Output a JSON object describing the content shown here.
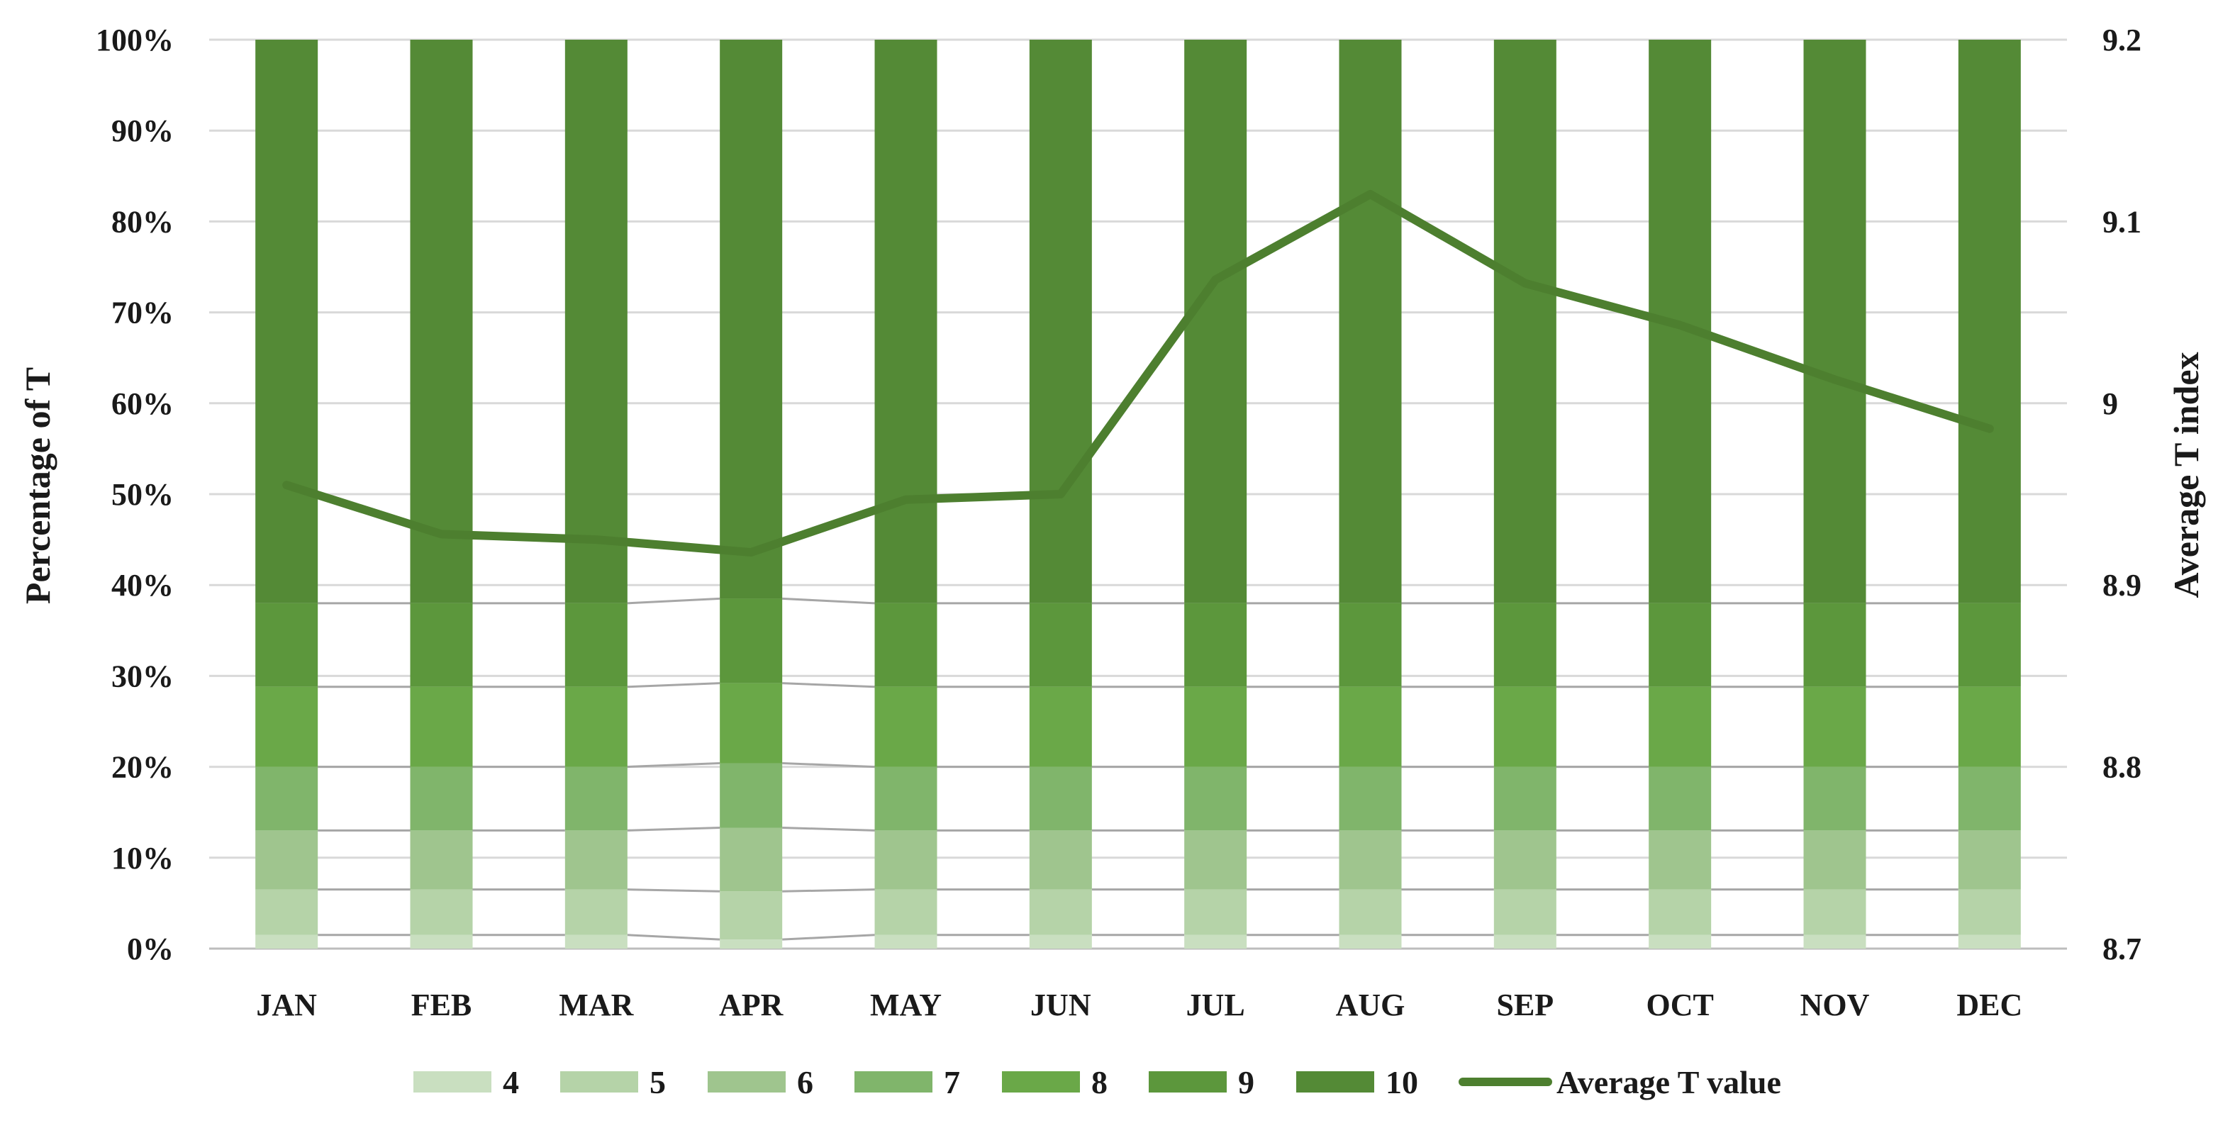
{
  "chart_data": {
    "type": "bar",
    "stacked": true,
    "percent_stacked": true,
    "categories": [
      "JAN",
      "FEB",
      "MAR",
      "APR",
      "MAY",
      "JUN",
      "JUL",
      "AUG",
      "SEP",
      "OCT",
      "NOV",
      "DEC"
    ],
    "series": [
      {
        "name": "4",
        "color": "#c9dfc0",
        "values": [
          1.5,
          1.5,
          1.5,
          1.0,
          1.5,
          1.5,
          1.5,
          1.5,
          1.5,
          1.5,
          1.5,
          1.5
        ]
      },
      {
        "name": "5",
        "color": "#b5d3a8",
        "values": [
          5.0,
          5.0,
          5.0,
          5.3,
          5.0,
          5.0,
          5.0,
          5.0,
          5.0,
          5.0,
          5.0,
          5.0
        ]
      },
      {
        "name": "6",
        "color": "#9fc58e",
        "values": [
          6.5,
          6.5,
          6.5,
          7.0,
          6.5,
          6.5,
          6.5,
          6.5,
          6.5,
          6.5,
          6.5,
          6.5
        ]
      },
      {
        "name": "7",
        "color": "#80b56b",
        "values": [
          7.0,
          7.0,
          7.0,
          7.1,
          7.0,
          7.0,
          7.0,
          7.0,
          7.0,
          7.0,
          7.0,
          7.0
        ]
      },
      {
        "name": "8",
        "color": "#6aa848",
        "values": [
          8.8,
          8.8,
          8.8,
          8.8,
          8.8,
          8.8,
          8.8,
          8.8,
          8.8,
          8.8,
          8.8,
          8.8
        ]
      },
      {
        "name": "9",
        "color": "#5c973c",
        "values": [
          9.2,
          9.2,
          9.2,
          9.3,
          9.2,
          9.2,
          9.2,
          9.2,
          9.2,
          9.2,
          9.2,
          9.2
        ]
      },
      {
        "name": "10",
        "color": "#548a36",
        "values": [
          62.0,
          62.0,
          62.0,
          61.5,
          62.0,
          62.0,
          62.0,
          62.0,
          62.0,
          62.0,
          62.0,
          62.0
        ]
      }
    ],
    "line_series": {
      "name": "Average T value",
      "color": "#4d7f2f",
      "axis": "secondary",
      "values": [
        8.955,
        8.928,
        8.925,
        8.918,
        8.947,
        8.95,
        9.068,
        9.115,
        9.066,
        9.043,
        9.013,
        8.986
      ]
    },
    "ylabel": "Percentage of T",
    "y2label": "Average T index",
    "ylim": [
      0,
      100
    ],
    "y2lim": [
      8.7,
      9.2
    ],
    "yticks": [
      "0%",
      "10%",
      "20%",
      "30%",
      "40%",
      "50%",
      "60%",
      "70%",
      "80%",
      "90%",
      "100%"
    ],
    "y2ticks": [
      "8.7",
      "8.8",
      "8.9",
      "9",
      "9.1",
      "9.2"
    ],
    "grid": true,
    "legend_position": "bottom",
    "legend": [
      "4",
      "5",
      "6",
      "7",
      "8",
      "9",
      "10",
      "Average T value"
    ]
  }
}
